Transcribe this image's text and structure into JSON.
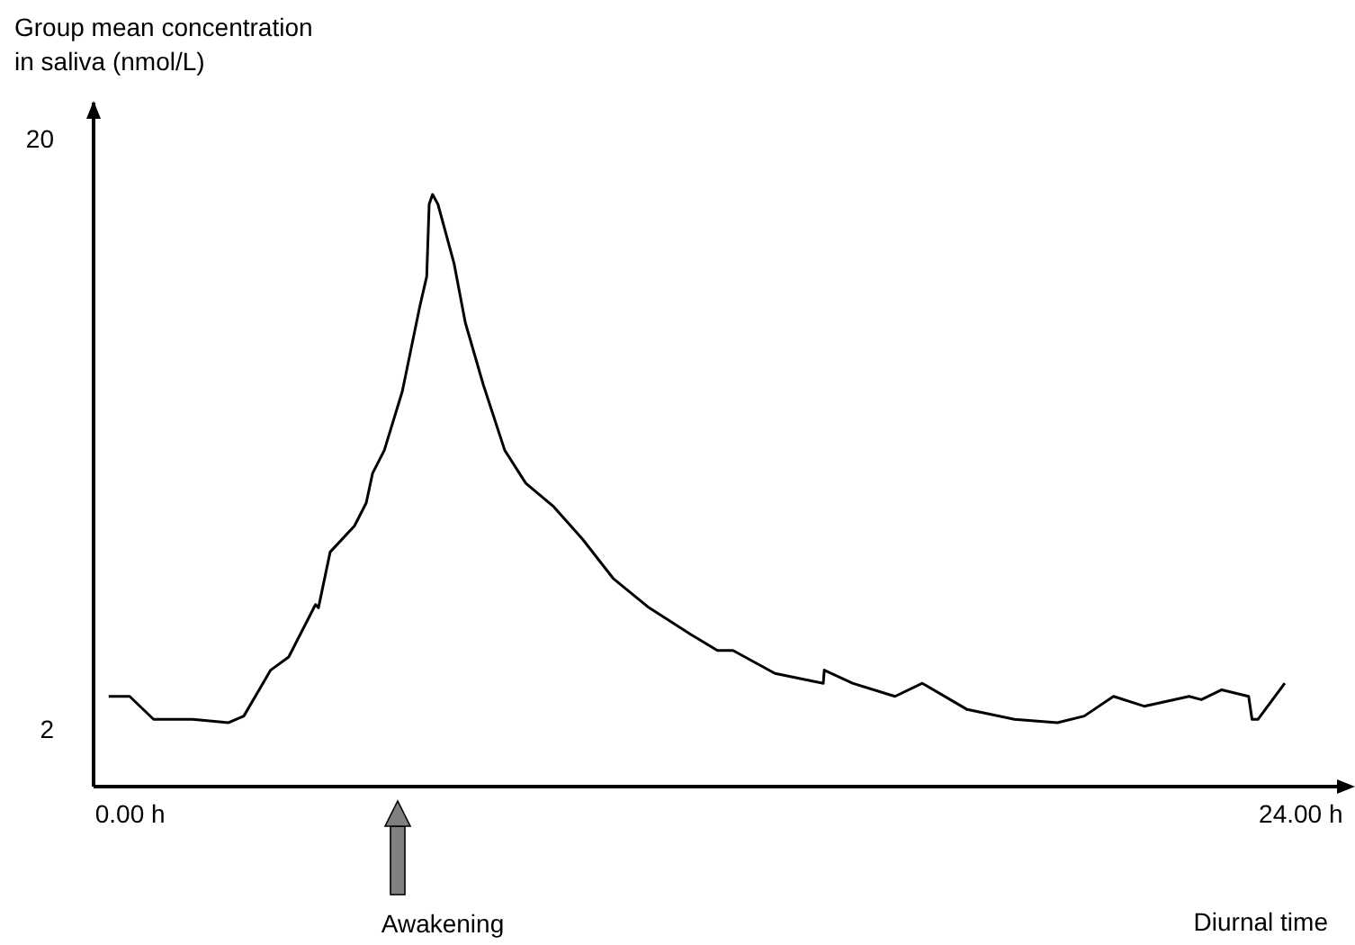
{
  "chart_data": {
    "type": "line",
    "ylabel": "Group mean concentration\nin saliva (nmol/L)",
    "xlabel": "Diurnal time",
    "annotations": [
      "Awakening"
    ],
    "x": [
      -0.44,
      -0.01,
      0.48,
      1.28,
      2.02,
      2.33,
      2.88,
      3.25,
      3.8,
      3.86,
      4.1,
      4.6,
      4.84,
      4.97,
      5.21,
      5.58,
      5.94,
      6.08,
      6.13,
      6.2,
      6.31,
      6.64,
      6.87,
      7.24,
      7.68,
      8.11,
      8.67,
      9.27,
      9.9,
      10.64,
      11.48,
      12.04,
      12.36,
      13.22,
      14.21,
      14.23,
      14.81,
      15.68,
      16.24,
      17.16,
      18.13,
      19.01,
      19.56,
      20.16,
      20.79,
      21.71,
      21.96,
      22.38,
      22.93,
      23.0,
      23.12,
      23.67
    ],
    "series": [
      {
        "color": "#000000",
        "values": [
          3.0,
          3.0,
          2.3,
          2.3,
          2.2,
          2.4,
          3.8,
          4.2,
          5.8,
          5.7,
          7.4,
          8.2,
          8.9,
          9.8,
          10.5,
          12.3,
          14.9,
          15.8,
          18.0,
          18.3,
          18.0,
          16.2,
          14.4,
          12.5,
          10.5,
          9.5,
          8.8,
          7.8,
          6.6,
          5.7,
          4.9,
          4.4,
          4.4,
          3.7,
          3.4,
          3.8,
          3.4,
          3.0,
          3.4,
          2.6,
          2.3,
          2.2,
          2.4,
          3.0,
          2.7,
          3.0,
          2.9,
          3.2,
          3.0,
          2.3,
          2.3,
          3.4
        ]
      }
    ],
    "xlim": [
      -0.75,
      25
    ],
    "xticks": [
      {
        "value": 0,
        "label": "0.00 h"
      },
      {
        "value": 24,
        "label": "24.00 h"
      }
    ],
    "ylim": [
      0.25,
      21.1
    ],
    "yticks": [
      2,
      20
    ],
    "marker": "none",
    "line_style": "solid"
  }
}
